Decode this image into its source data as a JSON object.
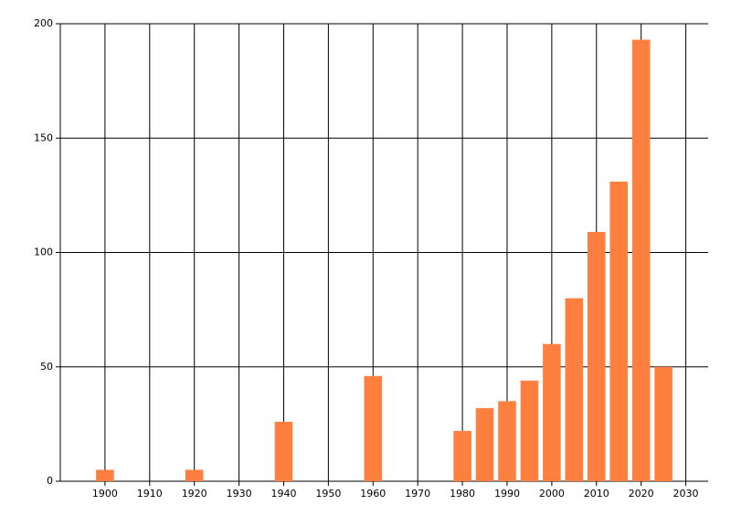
{
  "chart_data": {
    "type": "bar",
    "x": [
      1900,
      1920,
      1940,
      1960,
      1980,
      1985,
      1990,
      1995,
      2000,
      2005,
      2010,
      2015,
      2020,
      2025
    ],
    "values": [
      5,
      5,
      26,
      46,
      22,
      32,
      35,
      44,
      60,
      80,
      109,
      131,
      193,
      50
    ],
    "color": "#ff7f3f",
    "bar_width": 4,
    "xlim": [
      1890,
      2035
    ],
    "xticks": [
      1900,
      1910,
      1920,
      1930,
      1940,
      1950,
      1960,
      1970,
      1980,
      1990,
      2000,
      2010,
      2020,
      2030
    ],
    "ylim": [
      0,
      200
    ],
    "yticks": [
      0,
      50,
      100,
      150,
      200
    ],
    "grid": true
  }
}
